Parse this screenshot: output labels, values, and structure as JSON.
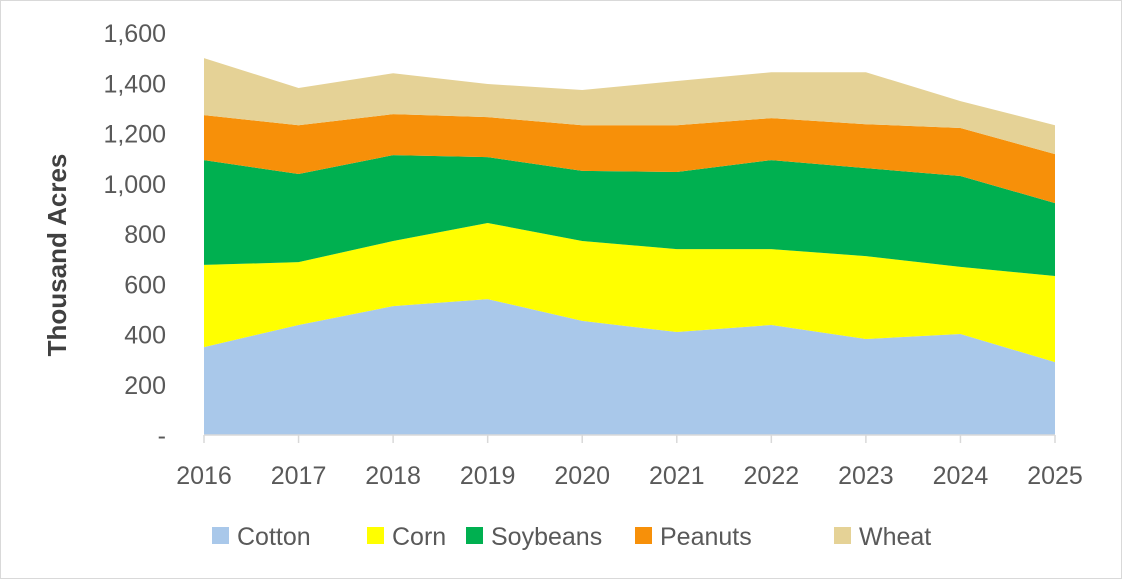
{
  "chart_data": {
    "type": "area",
    "stacked": true,
    "title": "",
    "xlabel": "",
    "ylabel": "Thousand Acres",
    "ylim": [
      0,
      1600
    ],
    "yticks": [
      0,
      200,
      400,
      600,
      800,
      1000,
      1200,
      1400,
      1600
    ],
    "ytick_labels": [
      "-",
      "200",
      "400",
      "600",
      "800",
      "1,000",
      "1,200",
      "1,400",
      "1,600"
    ],
    "categories": [
      "2016",
      "2017",
      "2018",
      "2019",
      "2020",
      "2021",
      "2022",
      "2023",
      "2024",
      "2025"
    ],
    "grid": false,
    "legend_position": "bottom",
    "series": [
      {
        "name": "Cotton",
        "color": "#A9C8EA",
        "values": [
          350,
          438,
          513,
          541,
          454,
          410,
          438,
          382,
          402,
          290
        ]
      },
      {
        "name": "Corn",
        "color": "#FFFF00",
        "values": [
          327,
          250,
          259,
          303,
          318,
          330,
          302,
          330,
          267,
          343
        ]
      },
      {
        "name": "Soybeans",
        "color": "#00B050",
        "values": [
          417,
          351,
          342,
          262,
          279,
          307,
          354,
          350,
          362,
          290
        ]
      },
      {
        "name": "Peanuts",
        "color": "#F79009",
        "values": [
          179,
          194,
          163,
          159,
          182,
          186,
          167,
          175,
          191,
          195
        ]
      },
      {
        "name": "Wheat",
        "color": "#E5D296",
        "values": [
          227,
          148,
          163,
          132,
          140,
          176,
          183,
          207,
          107,
          115
        ]
      }
    ]
  }
}
